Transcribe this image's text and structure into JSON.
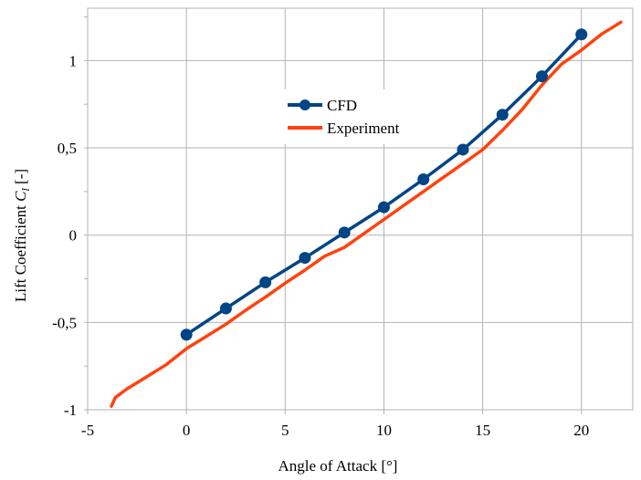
{
  "chart_data": {
    "type": "line",
    "title": "",
    "xlabel": "Angle of Attack  [°]",
    "ylabel_main": "Lift Coefficient ",
    "ylabel_symbol": "C",
    "ylabel_subscript": "l",
    "ylabel_unit": " [-]",
    "xlim": [
      -5,
      22.6
    ],
    "ylim": [
      -1,
      1.3
    ],
    "x_ticks": [
      -5,
      0,
      5,
      10,
      15,
      20
    ],
    "x_tick_labels": [
      "-5",
      "0",
      "5",
      "10",
      "15",
      "20"
    ],
    "y_ticks": [
      -1,
      -0.5,
      0,
      0.5,
      1
    ],
    "y_tick_labels": [
      "-1",
      "-0,5",
      "0",
      "0,5",
      "1"
    ],
    "grid": true,
    "legend_position": "upper-center",
    "series": [
      {
        "name": "CFD",
        "color": "#004586",
        "marker": "circle",
        "x": [
          0,
          2,
          4,
          6,
          8,
          10,
          12,
          14,
          16,
          18,
          20
        ],
        "y": [
          -0.57,
          -0.42,
          -0.27,
          -0.13,
          0.015,
          0.16,
          0.32,
          0.49,
          0.69,
          0.91,
          1.15
        ]
      },
      {
        "name": "Experiment",
        "color": "#ff420e",
        "marker": "none",
        "x": [
          -3.8,
          -3.6,
          -3,
          -2,
          -1,
          0,
          1,
          2,
          3,
          4,
          5,
          6,
          6.5,
          7,
          8,
          9,
          10,
          11,
          12,
          13,
          14,
          15,
          16,
          17,
          18,
          19,
          20,
          21,
          22
        ],
        "y": [
          -0.98,
          -0.93,
          -0.88,
          -0.81,
          -0.74,
          -0.65,
          -0.58,
          -0.51,
          -0.43,
          -0.355,
          -0.275,
          -0.2,
          -0.16,
          -0.12,
          -0.07,
          0.01,
          0.09,
          0.17,
          0.25,
          0.33,
          0.41,
          0.49,
          0.6,
          0.72,
          0.86,
          0.98,
          1.06,
          1.15,
          1.22
        ]
      }
    ]
  }
}
